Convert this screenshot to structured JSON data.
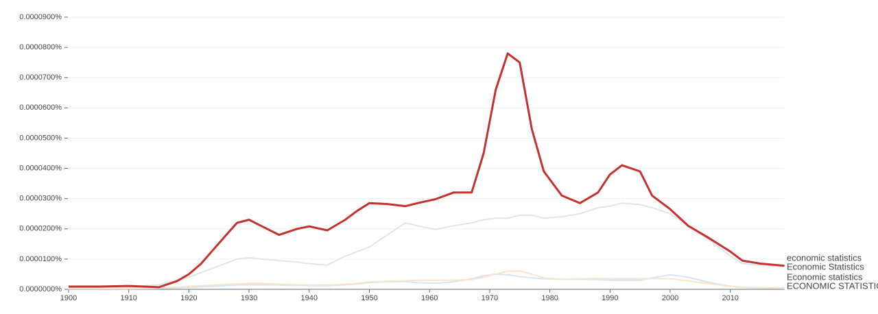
{
  "chart_data": {
    "type": "line",
    "x": [
      1900,
      1905,
      1910,
      1915,
      1918,
      1920,
      1922,
      1924,
      1926,
      1928,
      1930,
      1932,
      1935,
      1938,
      1940,
      1943,
      1946,
      1948,
      1950,
      1953,
      1956,
      1958,
      1961,
      1964,
      1967,
      1969,
      1971,
      1973,
      1975,
      1977,
      1979,
      1982,
      1985,
      1988,
      1990,
      1992,
      1995,
      1997,
      2000,
      2003,
      2006,
      2010,
      2012,
      2015,
      2019
    ],
    "xlim": [
      1900,
      2019
    ],
    "xticks": [
      1900,
      1910,
      1920,
      1930,
      1940,
      1950,
      1960,
      1970,
      1980,
      1990,
      2000,
      2010
    ],
    "ylim": [
      0,
      9e-05
    ],
    "yticks": [
      {
        "value": 0,
        "label": "0.0000000%"
      },
      {
        "value": 1e-05,
        "label": "0.0000100%"
      },
      {
        "value": 2e-05,
        "label": "0.0000200%"
      },
      {
        "value": 3e-05,
        "label": "0.0000300%"
      },
      {
        "value": 4e-05,
        "label": "0.0000400%"
      },
      {
        "value": 5e-05,
        "label": "0.0000500%"
      },
      {
        "value": 6e-05,
        "label": "0.0000600%"
      },
      {
        "value": 7e-05,
        "label": "0.0000700%"
      },
      {
        "value": 8e-05,
        "label": "0.0000800%"
      },
      {
        "value": 9e-05,
        "label": "0.0000900%"
      }
    ],
    "grid": true,
    "series": [
      {
        "name": "economic statistics",
        "color": "#dfe5ea",
        "values": [
          5e-07,
          5e-07,
          8e-07,
          1.5e-06,
          3e-06,
          4e-06,
          5.5e-06,
          7e-06,
          8.5e-06,
          1e-05,
          1.05e-05,
          1e-05,
          9.5e-06,
          9e-06,
          8.5e-06,
          8e-06,
          1.1e-05,
          1.25e-05,
          1.4e-05,
          1.8e-05,
          2.2e-05,
          2.1e-05,
          1.98e-05,
          2.1e-05,
          2.2e-05,
          2.3e-05,
          2.35e-05,
          2.35e-05,
          2.45e-05,
          2.45e-05,
          2.35e-05,
          2.4e-05,
          2.5e-05,
          2.7e-05,
          2.75e-05,
          2.85e-05,
          2.8e-05,
          2.7e-05,
          2.5e-05,
          2.1e-05,
          1.7e-05,
          1.1e-05,
          8.5e-06,
          8e-06,
          7.5e-06
        ]
      },
      {
        "name": "Economic Statistics",
        "color": "#c5312f",
        "values": [
          9e-07,
          9e-07,
          1.1e-06,
          7e-07,
          2.7e-06,
          5e-06,
          8.4e-06,
          1.3e-05,
          1.75e-05,
          2.2e-05,
          2.3e-05,
          2.1e-05,
          1.8e-05,
          2e-05,
          2.08e-05,
          1.95e-05,
          2.3e-05,
          2.6e-05,
          2.85e-05,
          2.82e-05,
          2.75e-05,
          2.85e-05,
          2.98e-05,
          3.2e-05,
          3.2e-05,
          4.5e-05,
          6.6e-05,
          7.8e-05,
          7.5e-05,
          5.3e-05,
          3.9e-05,
          3.1e-05,
          2.85e-05,
          3.2e-05,
          3.8e-05,
          4.1e-05,
          3.9e-05,
          3.1e-05,
          2.65e-05,
          2.1e-05,
          1.75e-05,
          1.25e-05,
          9.5e-06,
          8.5e-06,
          7.8e-06
        ]
      },
      {
        "name": "Economic statistics",
        "color": "#d6e4f5",
        "values": [
          2e-07,
          2e-07,
          2e-07,
          3e-07,
          5e-07,
          7e-07,
          8e-07,
          1e-06,
          1.2e-06,
          1.4e-06,
          1.5e-06,
          1.5e-06,
          1.4e-06,
          1.3e-06,
          1.2e-06,
          1.2e-06,
          1.5e-06,
          1.8e-06,
          2.2e-06,
          2.5e-06,
          2.5e-06,
          2.2e-06,
          2e-06,
          2.5e-06,
          3.5e-06,
          4.5e-06,
          5e-06,
          4.8e-06,
          4.2e-06,
          3.8e-06,
          3.5e-06,
          3.3e-06,
          3.3e-06,
          3.2e-06,
          3e-06,
          3e-06,
          3e-06,
          3.8e-06,
          4.8e-06,
          4e-06,
          2.5e-06,
          1e-06,
          7e-07,
          5e-07,
          5e-07
        ]
      },
      {
        "name": "ECONOMIC STATISTICS",
        "color": "#fbe3cc",
        "values": [
          3e-07,
          3e-07,
          3e-07,
          5e-07,
          7e-07,
          1e-06,
          1.2e-06,
          1.4e-06,
          1.6e-06,
          1.8e-06,
          2e-06,
          2e-06,
          1.7e-06,
          1.5e-06,
          1.4e-06,
          1.4e-06,
          1.7e-06,
          2e-06,
          2.4e-06,
          2.7e-06,
          2.8e-06,
          3e-06,
          3e-06,
          3e-06,
          3.2e-06,
          4e-06,
          5e-06,
          6e-06,
          6e-06,
          5e-06,
          3.8e-06,
          3.3e-06,
          3.5e-06,
          3.6e-06,
          3.5e-06,
          3.5e-06,
          3.5e-06,
          3.6e-06,
          3.5e-06,
          2.8e-06,
          2e-06,
          1e-06,
          6e-07,
          4e-07,
          3e-07
        ]
      }
    ]
  }
}
